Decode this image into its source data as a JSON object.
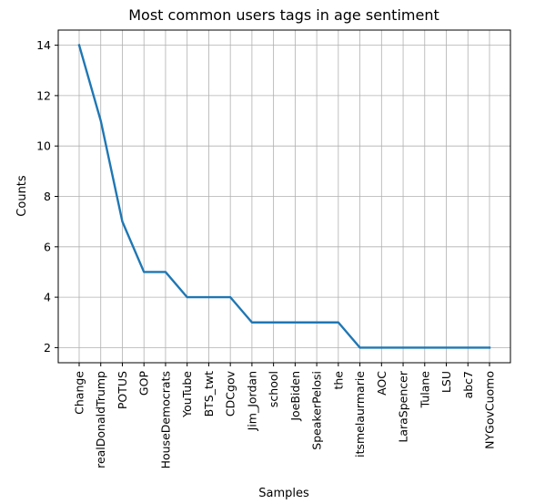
{
  "chart_data": {
    "type": "line",
    "title": "Most common users tags in age sentiment",
    "xlabel": "Samples",
    "ylabel": "Counts",
    "categories": [
      "Change",
      "realDonaldTrump",
      "POTUS",
      "GOP",
      "HouseDemocrats",
      "YouTube",
      "BTS_twt",
      "CDCgov",
      "Jim_Jordan",
      "school",
      "JoeBiden",
      "SpeakerPelosi",
      "the",
      "itsmelaurmarie",
      "AOC",
      "LaraSpencer",
      "Tulane",
      "LSU",
      "abc7",
      "NYGovCuomo"
    ],
    "values": [
      14,
      11,
      7,
      5,
      5,
      4,
      4,
      4,
      3,
      3,
      3,
      3,
      3,
      2,
      2,
      2,
      2,
      2,
      2,
      2
    ],
    "yticks": [
      2,
      4,
      6,
      8,
      10,
      12,
      14
    ],
    "ylim": [
      1.4,
      14.6
    ],
    "grid": true,
    "color": "#1f77b4"
  }
}
